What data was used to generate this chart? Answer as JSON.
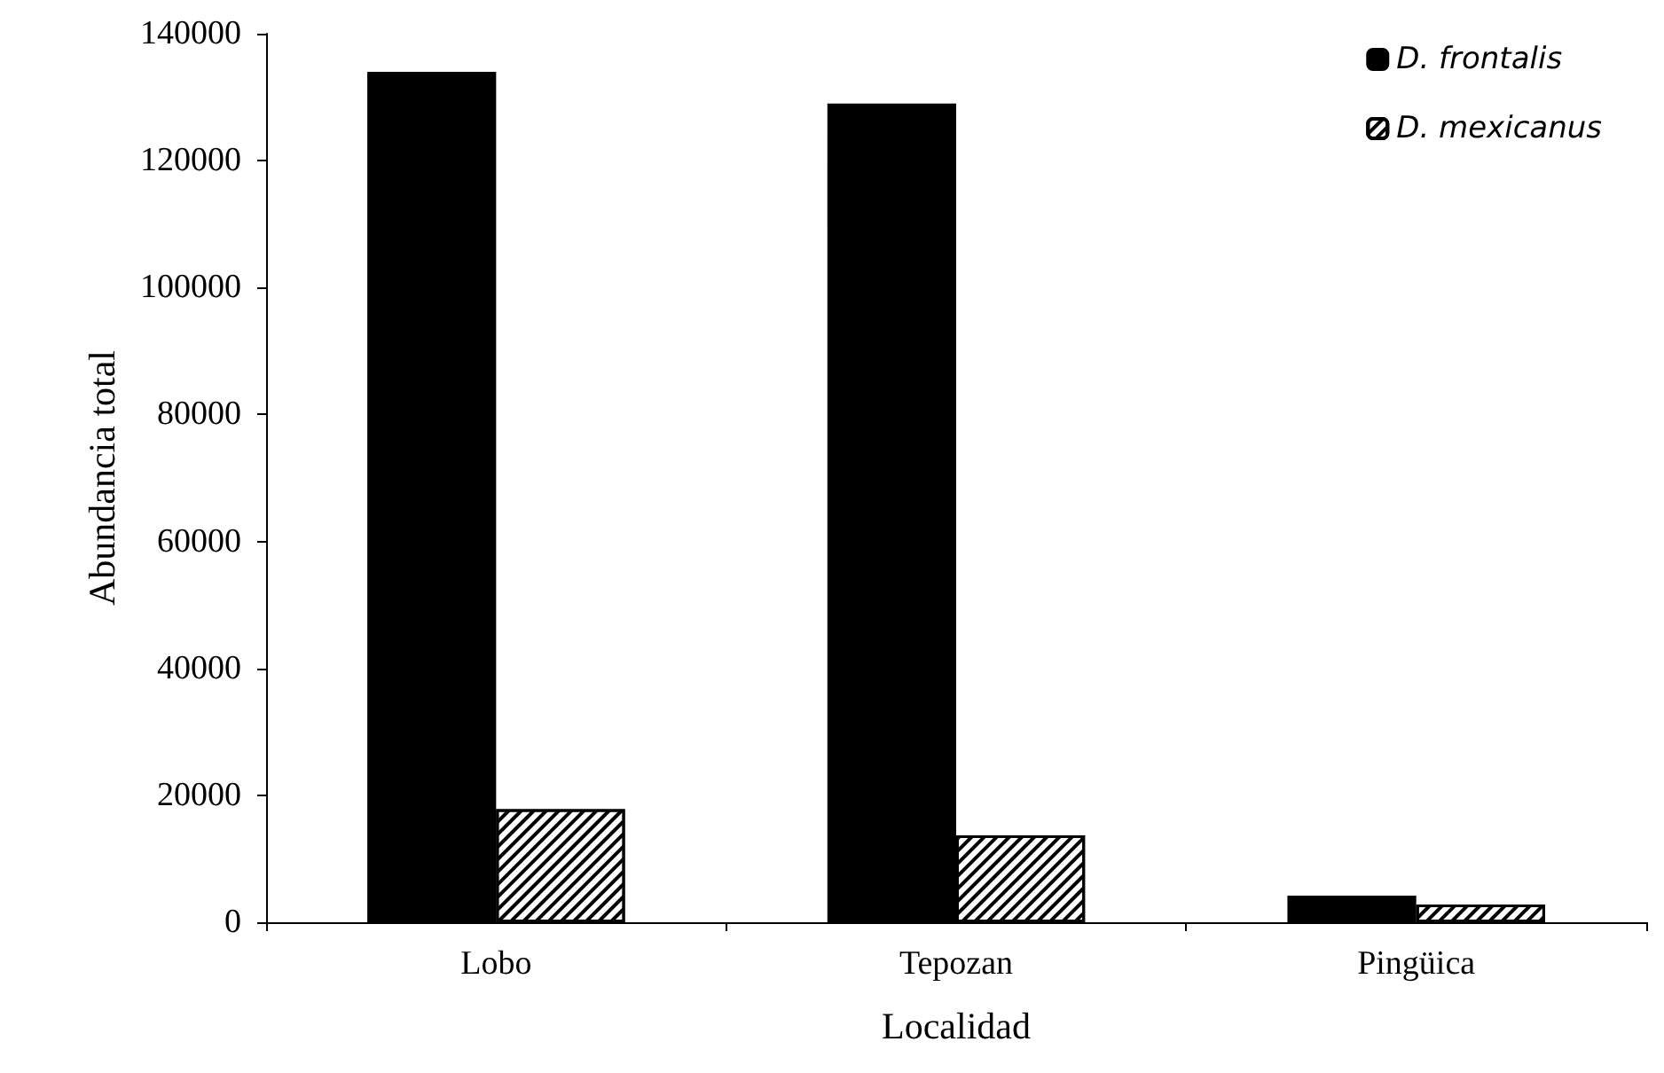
{
  "chart_data": {
    "type": "bar",
    "xlabel": "Localidad",
    "ylabel": "Abundancia total",
    "categories": [
      "Lobo",
      "Tepozan",
      "Pingüica"
    ],
    "series": [
      {
        "name": "D. frontalis",
        "color": "#000000",
        "values": [
          134000,
          129000,
          4200
        ]
      },
      {
        "name": "D. mexicanus",
        "color": "#ffffff",
        "values": [
          17800,
          13700,
          2800
        ]
      }
    ],
    "ylim": [
      0,
      140000
    ],
    "yticks": [
      0,
      20000,
      40000,
      60000,
      80000,
      100000,
      120000,
      140000
    ],
    "grid": false,
    "legend": "top right"
  }
}
